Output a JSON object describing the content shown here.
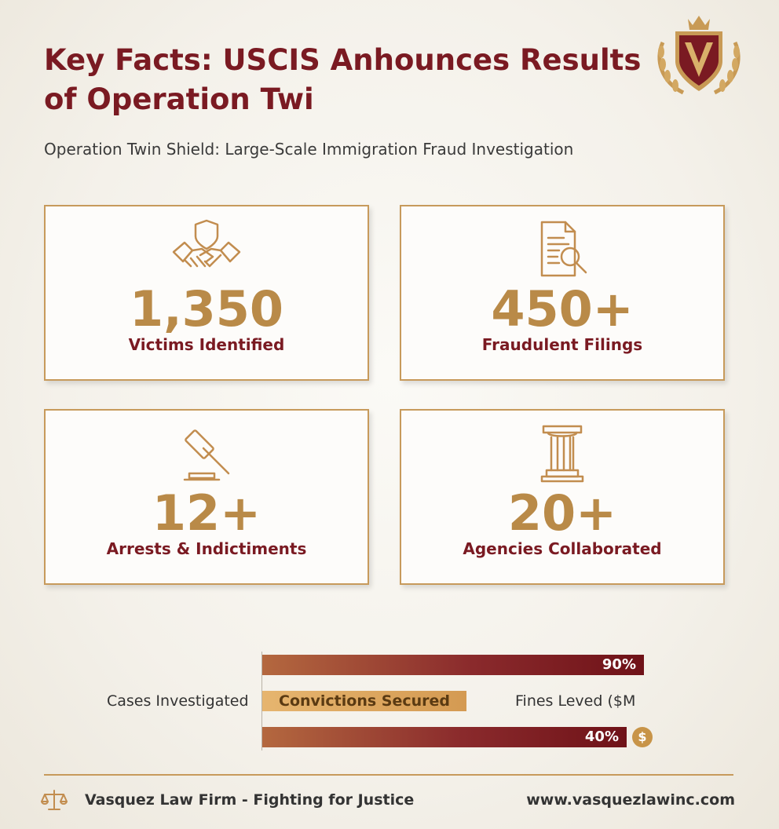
{
  "header": {
    "title": "Key Facts: USCIS Anhounces Results of Operation Twi",
    "subtitle": "Operation Twin Shield: Large-Scale Immigration Fraud Investigation",
    "logo_icon": "law-firm-crest-icon"
  },
  "colors": {
    "primary": "#7a1a22",
    "gold": "#b98a48",
    "border": "#c79a5b"
  },
  "stats": [
    {
      "icon": "handshake-shield-icon",
      "value": "1,350",
      "label": "Victims Identified"
    },
    {
      "icon": "document-search-icon",
      "value": "450+",
      "label": "Fraudulent Filings"
    },
    {
      "icon": "gavel-icon",
      "value": "12+",
      "label": "Arrests & Indictiments"
    },
    {
      "icon": "pillar-icon",
      "value": "20+",
      "label": "Agencies Collaborated"
    }
  ],
  "bar_chart": {
    "category_left": "Cases Investigated",
    "category_right": "Fines Leved ($M",
    "bars": [
      {
        "value_label": "90%"
      },
      {
        "inner_label": "Convictions Secured"
      },
      {
        "value_label": "40%",
        "badge": "$"
      }
    ]
  },
  "footer": {
    "left": "Vasquez Law Firm - Fighting for Justice",
    "right": "www.vasquezlawinc.com",
    "icon": "scales-of-justice-icon"
  }
}
